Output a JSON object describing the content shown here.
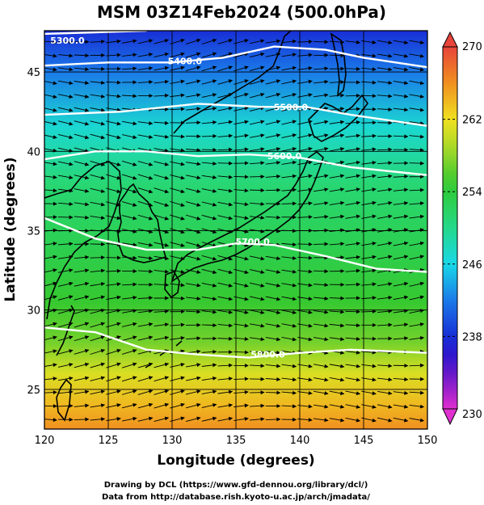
{
  "title": "MSM 03Z14Feb2024 (500.0hPa)",
  "credits": {
    "line1": "Drawing by DCL (https://www.gfd-dennou.org/library/dcl/)",
    "line2": "Data from http://database.rish.kyoto-u.ac.jp/arch/jmadata/"
  },
  "colorbar": {
    "min": 230,
    "max": 270,
    "tick_labels": [
      "270",
      "262",
      "254",
      "246",
      "238",
      "230"
    ]
  },
  "chart_data": {
    "type": "heatmap",
    "title": "MSM 03Z14Feb2024 (500.0hPa)",
    "xlabel": "Longitude (degrees)",
    "ylabel": "Latitude  (degrees)",
    "xlim": [
      120,
      150
    ],
    "ylim": [
      22.5,
      47.6
    ],
    "x_ticks": [
      120,
      125,
      130,
      135,
      140,
      145,
      150
    ],
    "x_tick_labels": [
      "120",
      "125",
      "130",
      "135",
      "140",
      "145",
      "150"
    ],
    "y_ticks": [
      25,
      30,
      35,
      40,
      45
    ],
    "y_tick_labels": [
      "25",
      "30",
      "35",
      "40",
      "45"
    ],
    "grid": true,
    "colorbar_range": [
      230,
      270
    ],
    "shaded_field_bands": [
      {
        "lat": 47.6,
        "value": 238
      },
      {
        "lat": 45.0,
        "value": 242
      },
      {
        "lat": 41.5,
        "value": 247
      },
      {
        "lat": 38.0,
        "value": 251
      },
      {
        "lat": 34.0,
        "value": 253
      },
      {
        "lat": 30.5,
        "value": 255
      },
      {
        "lat": 28.0,
        "value": 257
      },
      {
        "lat": 26.0,
        "value": 261
      },
      {
        "lat": 24.0,
        "value": 264
      },
      {
        "lat": 22.5,
        "value": 266
      }
    ],
    "contours": [
      {
        "label": "5300.0",
        "points": [
          [
            120,
            47.4
          ],
          [
            124,
            47.5
          ],
          [
            128,
            47.6
          ]
        ],
        "label_at": [
          121.8,
          47.0
        ]
      },
      {
        "label": "5400.0",
        "points": [
          [
            120,
            45.4
          ],
          [
            125,
            45.6
          ],
          [
            130,
            45.6
          ],
          [
            134,
            45.9
          ],
          [
            138,
            46.6
          ],
          [
            142,
            46.4
          ],
          [
            145,
            45.9
          ],
          [
            150,
            45.3
          ]
        ],
        "label_at": [
          131.0,
          45.7
        ]
      },
      {
        "label": "5500.0",
        "points": [
          [
            120,
            42.3
          ],
          [
            126,
            42.5
          ],
          [
            132,
            43.0
          ],
          [
            137,
            42.8
          ],
          [
            140.5,
            42.8
          ],
          [
            144,
            42.3
          ],
          [
            150,
            41.6
          ]
        ],
        "label_at": [
          139.3,
          42.8
        ]
      },
      {
        "label": "5600.0",
        "points": [
          [
            120,
            39.5
          ],
          [
            124,
            40.0
          ],
          [
            128,
            40.0
          ],
          [
            132,
            39.7
          ],
          [
            136,
            39.8
          ],
          [
            140,
            39.6
          ],
          [
            144,
            39.0
          ],
          [
            150,
            38.5
          ]
        ],
        "label_at": [
          138.8,
          39.7
        ]
      },
      {
        "label": "5700.0",
        "points": [
          [
            120,
            35.8
          ],
          [
            124,
            34.5
          ],
          [
            128,
            33.8
          ],
          [
            132,
            33.8
          ],
          [
            135,
            34.2
          ],
          [
            138,
            34.1
          ],
          [
            142,
            33.4
          ],
          [
            146,
            32.6
          ],
          [
            150,
            32.4
          ]
        ],
        "label_at": [
          136.3,
          34.3
        ]
      },
      {
        "label": "5800.0",
        "points": [
          [
            120,
            28.9
          ],
          [
            124,
            28.6
          ],
          [
            128,
            27.5
          ],
          [
            132,
            27.2
          ],
          [
            136,
            27.0
          ],
          [
            140,
            27.3
          ],
          [
            144,
            27.5
          ],
          [
            150,
            27.3
          ]
        ],
        "label_at": [
          137.5,
          27.2
        ]
      }
    ],
    "flow_direction": "west-to-east"
  }
}
